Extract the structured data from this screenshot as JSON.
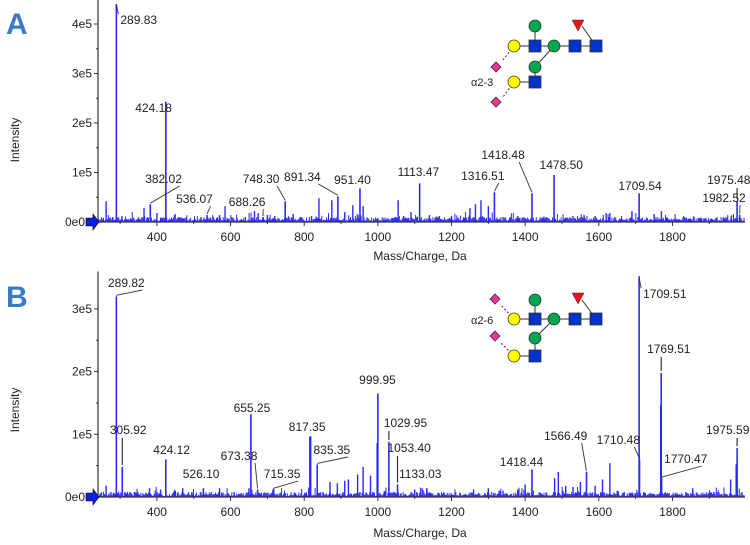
{
  "colors": {
    "peak": "#2a2aff",
    "axis": "#333333",
    "panel_letter": "#3a7cc2",
    "galactose": "#ffff00",
    "mannose": "#00a651",
    "glcnac": "#0033cc",
    "fucose": "#ee1111",
    "sialic": "#ee3399"
  },
  "chart_data": [
    {
      "type": "bar",
      "panel": "A",
      "xlabel": "Mass/Charge, Da",
      "ylabel": "Intensity",
      "xlim": [
        240,
        1997
      ],
      "ylim": [
        0,
        440000
      ],
      "x_ticks": [
        400,
        600,
        800,
        1000,
        1200,
        1400,
        1600,
        1800
      ],
      "x_tick_labels": [
        "400",
        "600",
        "800",
        "1000",
        "1200",
        "1400",
        "1600",
        "1800"
      ],
      "y_ticks": [
        0,
        100000,
        200000,
        300000,
        400000
      ],
      "y_tick_labels": [
        "0e0",
        "1e5",
        "2e5",
        "3e5",
        "4e5"
      ],
      "glycan_linkage": "α2-3",
      "labeled_peaks": [
        {
          "mz": 289.83,
          "intensity": 440000,
          "label": "289.83"
        },
        {
          "mz": 424.18,
          "intensity": 243000,
          "label": "424.18"
        },
        {
          "mz": 382.02,
          "intensity": 36000,
          "label": "382.02"
        },
        {
          "mz": 536.07,
          "intensity": 14000,
          "label": "536.07"
        },
        {
          "mz": 688.26,
          "intensity": 10000,
          "label": "688.26"
        },
        {
          "mz": 748.3,
          "intensity": 42000,
          "label": "748.30"
        },
        {
          "mz": 891.34,
          "intensity": 52000,
          "label": "891.34"
        },
        {
          "mz": 951.4,
          "intensity": 68000,
          "label": "951.40"
        },
        {
          "mz": 1113.47,
          "intensity": 78000,
          "label": "1113.47"
        },
        {
          "mz": 1316.51,
          "intensity": 60000,
          "label": "1316.51"
        },
        {
          "mz": 1418.48,
          "intensity": 58000,
          "label": "1418.48"
        },
        {
          "mz": 1478.5,
          "intensity": 95000,
          "label": "1478.50"
        },
        {
          "mz": 1709.54,
          "intensity": 58000,
          "label": "1709.54"
        },
        {
          "mz": 1975.48,
          "intensity": 42000,
          "label": "1975.48"
        },
        {
          "mz": 1982.52,
          "intensity": 15000,
          "label": "1982.52"
        }
      ],
      "minor_peaks": [
        {
          "mz": 262,
          "intensity": 42000
        },
        {
          "mz": 270,
          "intensity": 8000
        },
        {
          "mz": 280,
          "intensity": 10000
        },
        {
          "mz": 305,
          "intensity": 12000
        },
        {
          "mz": 330,
          "intensity": 6000
        },
        {
          "mz": 350,
          "intensity": 7000
        },
        {
          "mz": 365,
          "intensity": 28000
        },
        {
          "mz": 400,
          "intensity": 18000
        },
        {
          "mz": 410,
          "intensity": 9000
        },
        {
          "mz": 460,
          "intensity": 6000
        },
        {
          "mz": 480,
          "intensity": 8000
        },
        {
          "mz": 520,
          "intensity": 10000
        },
        {
          "mz": 545,
          "intensity": 9000
        },
        {
          "mz": 570,
          "intensity": 14000
        },
        {
          "mz": 585,
          "intensity": 32000
        },
        {
          "mz": 640,
          "intensity": 10000
        },
        {
          "mz": 665,
          "intensity": 22000
        },
        {
          "mz": 675,
          "intensity": 18000
        },
        {
          "mz": 700,
          "intensity": 14000
        },
        {
          "mz": 720,
          "intensity": 12000
        },
        {
          "mz": 770,
          "intensity": 16000
        },
        {
          "mz": 790,
          "intensity": 10000
        },
        {
          "mz": 820,
          "intensity": 12000
        },
        {
          "mz": 840,
          "intensity": 48000
        },
        {
          "mz": 875,
          "intensity": 44000
        },
        {
          "mz": 910,
          "intensity": 20000
        },
        {
          "mz": 932,
          "intensity": 34000
        },
        {
          "mz": 960,
          "intensity": 32000
        },
        {
          "mz": 1000,
          "intensity": 8000
        },
        {
          "mz": 1040,
          "intensity": 8000
        },
        {
          "mz": 1055,
          "intensity": 44000
        },
        {
          "mz": 1070,
          "intensity": 12000
        },
        {
          "mz": 1090,
          "intensity": 20000
        },
        {
          "mz": 1140,
          "intensity": 14000
        },
        {
          "mz": 1160,
          "intensity": 10000
        },
        {
          "mz": 1200,
          "intensity": 12000
        },
        {
          "mz": 1250,
          "intensity": 28000
        },
        {
          "mz": 1265,
          "intensity": 36000
        },
        {
          "mz": 1280,
          "intensity": 44000
        },
        {
          "mz": 1300,
          "intensity": 32000
        },
        {
          "mz": 1340,
          "intensity": 10000
        },
        {
          "mz": 1380,
          "intensity": 12000
        },
        {
          "mz": 1400,
          "intensity": 8000
        },
        {
          "mz": 1530,
          "intensity": 12000
        },
        {
          "mz": 1560,
          "intensity": 14000
        },
        {
          "mz": 1590,
          "intensity": 12000
        },
        {
          "mz": 1620,
          "intensity": 18000
        },
        {
          "mz": 1630,
          "intensity": 18000
        },
        {
          "mz": 1690,
          "intensity": 22000
        },
        {
          "mz": 1750,
          "intensity": 16000
        },
        {
          "mz": 1770,
          "intensity": 22000
        },
        {
          "mz": 1850,
          "intensity": 6000
        },
        {
          "mz": 1940,
          "intensity": 8000
        },
        {
          "mz": 1960,
          "intensity": 12000
        }
      ]
    },
    {
      "type": "bar",
      "panel": "B",
      "xlabel": "Mass/Charge, Da",
      "ylabel": "Intensity",
      "xlim": [
        240,
        1997
      ],
      "ylim": [
        0,
        350000
      ],
      "x_ticks": [
        400,
        600,
        800,
        1000,
        1200,
        1400,
        1600,
        1800
      ],
      "x_tick_labels": [
        "400",
        "600",
        "800",
        "1000",
        "1200",
        "1400",
        "1600",
        "1800"
      ],
      "y_ticks": [
        0,
        100000,
        200000,
        300000
      ],
      "y_tick_labels": [
        "0e0",
        "1e5",
        "2e5",
        "3e5"
      ],
      "glycan_linkage": "α2-6",
      "labeled_peaks": [
        {
          "mz": 289.82,
          "intensity": 320000,
          "label": "289.82"
        },
        {
          "mz": 305.92,
          "intensity": 48000,
          "label": "305.92"
        },
        {
          "mz": 424.12,
          "intensity": 60000,
          "label": "424.12"
        },
        {
          "mz": 526.1,
          "intensity": 14000,
          "label": "526.10"
        },
        {
          "mz": 655.25,
          "intensity": 132000,
          "label": "655.25"
        },
        {
          "mz": 673.38,
          "intensity": 12000,
          "label": "673.38"
        },
        {
          "mz": 715.35,
          "intensity": 12000,
          "label": "715.35"
        },
        {
          "mz": 817.35,
          "intensity": 97000,
          "label": "817.35"
        },
        {
          "mz": 835.35,
          "intensity": 52000,
          "label": "835.35"
        },
        {
          "mz": 999.95,
          "intensity": 165000,
          "label": "999.95"
        },
        {
          "mz": 1029.95,
          "intensity": 88000,
          "label": "1029.95"
        },
        {
          "mz": 1053.4,
          "intensity": 20000,
          "label": "1053.40"
        },
        {
          "mz": 1133.03,
          "intensity": 14000,
          "label": "1133.03"
        },
        {
          "mz": 1418.44,
          "intensity": 44000,
          "label": "1418.44"
        },
        {
          "mz": 1566.49,
          "intensity": 40000,
          "label": "1566.49"
        },
        {
          "mz": 1709.51,
          "intensity": 352000,
          "label": "1709.51"
        },
        {
          "mz": 1710.48,
          "intensity": 60000,
          "label": "1710.48"
        },
        {
          "mz": 1769.51,
          "intensity": 198000,
          "label": "1769.51"
        },
        {
          "mz": 1770.47,
          "intensity": 30000,
          "label": "1770.47"
        },
        {
          "mz": 1975.59,
          "intensity": 78000,
          "label": "1975.59"
        }
      ],
      "minor_peaks": [
        {
          "mz": 262,
          "intensity": 18000
        },
        {
          "mz": 275,
          "intensity": 8000
        },
        {
          "mz": 340,
          "intensity": 8000
        },
        {
          "mz": 380,
          "intensity": 14000
        },
        {
          "mz": 410,
          "intensity": 12000
        },
        {
          "mz": 450,
          "intensity": 10000
        },
        {
          "mz": 470,
          "intensity": 14000
        },
        {
          "mz": 495,
          "intensity": 8000
        },
        {
          "mz": 570,
          "intensity": 14000
        },
        {
          "mz": 610,
          "intensity": 8000
        },
        {
          "mz": 650,
          "intensity": 14000
        },
        {
          "mz": 815,
          "intensity": 96000
        },
        {
          "mz": 870,
          "intensity": 24000
        },
        {
          "mz": 890,
          "intensity": 22000
        },
        {
          "mz": 910,
          "intensity": 26000
        },
        {
          "mz": 920,
          "intensity": 28000
        },
        {
          "mz": 945,
          "intensity": 36000
        },
        {
          "mz": 960,
          "intensity": 48000
        },
        {
          "mz": 980,
          "intensity": 34000
        },
        {
          "mz": 998,
          "intensity": 86000
        },
        {
          "mz": 1100,
          "intensity": 12000
        },
        {
          "mz": 1120,
          "intensity": 14000
        },
        {
          "mz": 1260,
          "intensity": 12000
        },
        {
          "mz": 1300,
          "intensity": 14000
        },
        {
          "mz": 1340,
          "intensity": 10000
        },
        {
          "mz": 1380,
          "intensity": 12000
        },
        {
          "mz": 1400,
          "intensity": 20000
        },
        {
          "mz": 1480,
          "intensity": 30000
        },
        {
          "mz": 1490,
          "intensity": 40000
        },
        {
          "mz": 1510,
          "intensity": 18000
        },
        {
          "mz": 1530,
          "intensity": 16000
        },
        {
          "mz": 1550,
          "intensity": 24000
        },
        {
          "mz": 1590,
          "intensity": 18000
        },
        {
          "mz": 1610,
          "intensity": 28000
        },
        {
          "mz": 1630,
          "intensity": 54000
        },
        {
          "mz": 1650,
          "intensity": 10000
        },
        {
          "mz": 1768,
          "intensity": 146000
        },
        {
          "mz": 1855,
          "intensity": 14000
        },
        {
          "mz": 1958,
          "intensity": 28000
        },
        {
          "mz": 1973,
          "intensity": 52000
        }
      ]
    }
  ]
}
